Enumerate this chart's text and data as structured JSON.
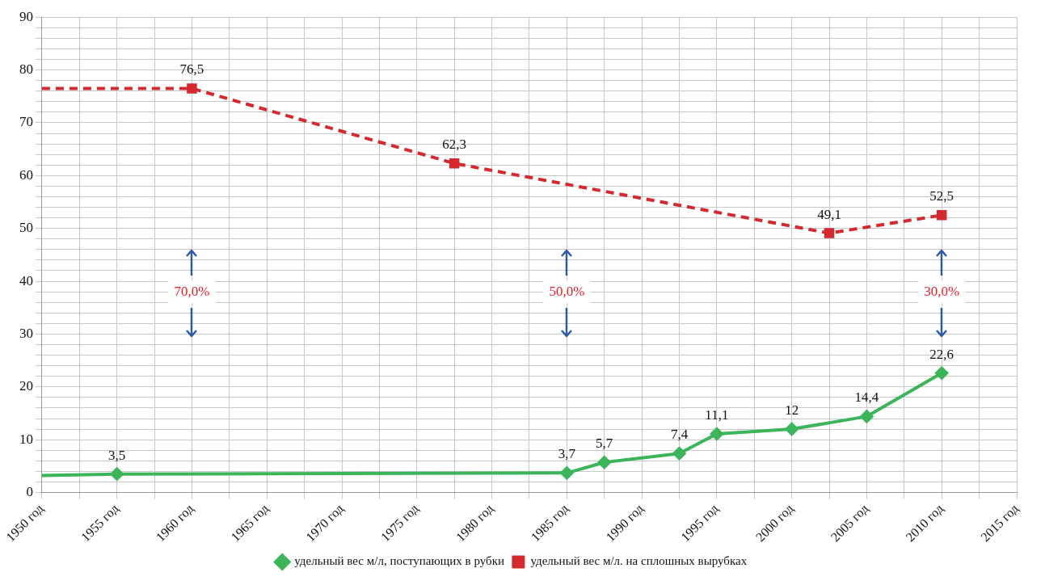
{
  "chart_data": {
    "type": "line",
    "legend": "bottom",
    "grid": true,
    "data_labels": false,
    "xlim": [
      1950,
      2015
    ],
    "xticks": [
      {
        "value": 1950,
        "label": "1950 год"
      },
      {
        "value": 1952.5,
        "label": null
      },
      {
        "value": 1955,
        "label": "1955 год"
      },
      {
        "value": 1957.5,
        "label": null
      },
      {
        "value": 1960,
        "label": "1960 год"
      },
      {
        "value": 1962.5,
        "label": null
      },
      {
        "value": 1965,
        "label": "1965 год"
      },
      {
        "value": 1967.5,
        "label": null
      },
      {
        "value": 1970,
        "label": "1970 год"
      },
      {
        "value": 1972.5,
        "label": null
      },
      {
        "value": 1975,
        "label": "1975 год"
      },
      {
        "value": 1977.5,
        "label": null
      },
      {
        "value": 1980,
        "label": "1980 год"
      },
      {
        "value": 1982.5,
        "label": null
      },
      {
        "value": 1985,
        "label": "1985 год"
      },
      {
        "value": 1987.5,
        "label": null
      },
      {
        "value": 1990,
        "label": "1990 год"
      },
      {
        "value": 1992.5,
        "label": null
      },
      {
        "value": 1995,
        "label": "1995 год"
      },
      {
        "value": 1997.5,
        "label": null
      },
      {
        "value": 2000,
        "label": "2000 год"
      },
      {
        "value": 2002.5,
        "label": null
      },
      {
        "value": 2005,
        "label": "2005 год"
      },
      {
        "value": 2007.5,
        "label": null
      },
      {
        "value": 2010,
        "label": "2010 год"
      },
      {
        "value": 2012.5,
        "label": null
      },
      {
        "value": 2015,
        "label": "2015 год"
      }
    ],
    "ylim": [
      0,
      90
    ],
    "yticks": [
      0,
      {
        "value": 2,
        "label": null
      },
      {
        "value": 4,
        "label": null
      },
      {
        "value": 6,
        "label": null
      },
      {
        "value": 8,
        "label": null
      },
      10,
      {
        "value": 12,
        "label": null
      },
      {
        "value": 14,
        "label": null
      },
      {
        "value": 16,
        "label": null
      },
      {
        "value": 18,
        "label": null
      },
      20,
      {
        "value": 22,
        "label": null
      },
      {
        "value": 24,
        "label": null
      },
      {
        "value": 26,
        "label": null
      },
      {
        "value": 28,
        "label": null
      },
      30,
      {
        "value": 32,
        "label": null
      },
      {
        "value": 34,
        "label": null
      },
      {
        "value": 36,
        "label": null
      },
      {
        "value": 38,
        "label": null
      },
      40,
      {
        "value": 42,
        "label": null
      },
      {
        "value": 44,
        "label": null
      },
      {
        "value": 46,
        "label": null
      },
      {
        "value": 48,
        "label": null
      },
      50,
      {
        "value": 52,
        "label": null
      },
      {
        "value": 54,
        "label": null
      },
      {
        "value": 56,
        "label": null
      },
      {
        "value": 58,
        "label": null
      },
      60,
      {
        "value": 62,
        "label": null
      },
      {
        "value": 64,
        "label": null
      },
      {
        "value": 66,
        "label": null
      },
      {
        "value": 68,
        "label": null
      },
      70,
      {
        "value": 72,
        "label": null
      },
      {
        "value": 74,
        "label": null
      },
      {
        "value": 76,
        "label": null
      },
      {
        "value": 78,
        "label": null
      },
      80,
      {
        "value": 82,
        "label": null
      },
      {
        "value": 84,
        "label": null
      },
      {
        "value": 86,
        "label": null
      },
      {
        "value": 88,
        "label": null
      },
      90
    ],
    "series": [
      {
        "name": "удельный вес м/л, поступающих в рубки",
        "color": "#3cb55a",
        "marker": "diamond",
        "line_style": "solid",
        "x": [
          1950,
          1955,
          1985,
          1987.5,
          1992.5,
          1995,
          2000,
          2005,
          2010
        ],
        "values": [
          3.2,
          3.5,
          3.7,
          5.7,
          7.4,
          11.1,
          12,
          14.4,
          22.6
        ],
        "value_labels": [
          null,
          "3,5",
          "3,7",
          "5,7",
          "7,4",
          "11,1",
          "12",
          "14,4",
          "22,6"
        ]
      },
      {
        "name": "удельный вес м/л. на сплошных вырубках",
        "color": "#d42a2f",
        "marker": "square",
        "line_style": "dashed",
        "x": [
          1950,
          1960,
          1977.5,
          2002.5,
          2010
        ],
        "values": [
          76.5,
          76.5,
          62.3,
          49.1,
          52.5
        ],
        "value_labels": [
          null,
          "76,5",
          "62,3",
          "49,1",
          "52,5"
        ]
      }
    ],
    "annotations": [
      "70,0%",
      "50,0%",
      "30,0%"
    ]
  }
}
